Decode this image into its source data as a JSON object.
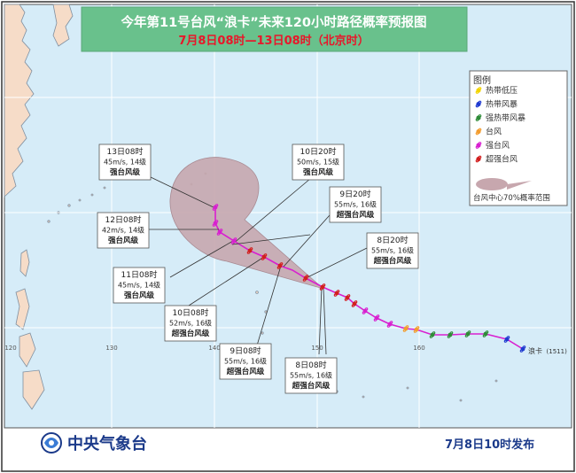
{
  "title": {
    "line1": "今年第11号台风“浪卡”未来120小时路径概率预报图",
    "line2": "7月8日08时—13日08时（北京时）"
  },
  "longitude_labels": [
    "120",
    "130",
    "140",
    "150",
    "160"
  ],
  "typhoon_label": "浪卡",
  "typhoon_code": "(1511)",
  "colors": {
    "ocean": "#d6ecf8",
    "land": "#f6dcc8",
    "cone": "#c7a7ae",
    "title_bg": "#69c18c",
    "title_text": "#ffffff",
    "date_text": "#e8172a",
    "agency_text": "#1b3a8a",
    "tropical_depression": "#f2d400",
    "tropical_storm": "#1f3ad0",
    "severe_tropical_storm": "#2e8b38",
    "typhoon": "#f39c2e",
    "severe_typhoon": "#d820d0",
    "super_typhoon": "#d21f1f"
  },
  "legend": {
    "title": "图例",
    "items": [
      {
        "label": "热带低压",
        "color": "#f2d400"
      },
      {
        "label": "热带风暴",
        "color": "#1f3ad0"
      },
      {
        "label": "强热带风暴",
        "color": "#2e8b38"
      },
      {
        "label": "台风",
        "color": "#f39c2e"
      },
      {
        "label": "强台风",
        "color": "#d820d0"
      },
      {
        "label": "超强台风",
        "color": "#d21f1f"
      }
    ],
    "cone_label": "台风中心70%概率范围"
  },
  "forecast_labels": [
    {
      "time": "13日08时",
      "wind": "45m/s, 14级",
      "grade": "强台风级"
    },
    {
      "time": "12日08时",
      "wind": "42m/s, 14级",
      "grade": "强台风级"
    },
    {
      "time": "11日08时",
      "wind": "45m/s, 14级",
      "grade": "强台风级"
    },
    {
      "time": "10日08时",
      "wind": "52m/s, 16级",
      "grade": "超强台风级"
    },
    {
      "time": "10日20时",
      "wind": "50m/s, 15级",
      "grade": "强台风级"
    },
    {
      "time": "9日20时",
      "wind": "55m/s, 16级",
      "grade": "超强台风级"
    },
    {
      "time": "8日20时",
      "wind": "55m/s, 16级",
      "grade": "超强台风级"
    },
    {
      "time": "9日08时",
      "wind": "55m/s, 16级",
      "grade": "超强台风级"
    },
    {
      "time": "8日08时",
      "wind": "55m/s, 16级",
      "grade": "超强台风级"
    }
  ],
  "footer": {
    "agency": "中央气象台",
    "issue_time": "7月8日10时发布"
  }
}
